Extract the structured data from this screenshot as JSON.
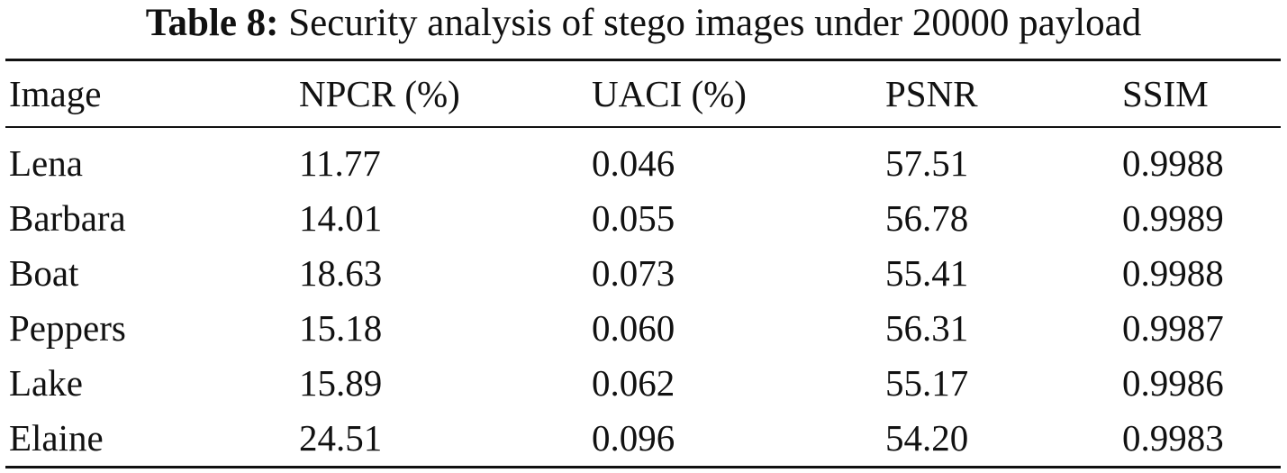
{
  "caption": {
    "label": "Table 8:",
    "text": "Security analysis of stego images under 20000 payload"
  },
  "table": {
    "headers": [
      "Image",
      "NPCR (%)",
      "UACI (%)",
      "PSNR",
      "SSIM"
    ],
    "rows": [
      [
        "Lena",
        "11.77",
        "0.046",
        "57.51",
        "0.9988"
      ],
      [
        "Barbara",
        "14.01",
        "0.055",
        "56.78",
        "0.9989"
      ],
      [
        "Boat",
        "18.63",
        "0.073",
        "55.41",
        "0.9988"
      ],
      [
        "Peppers",
        "15.18",
        "0.060",
        "56.31",
        "0.9987"
      ],
      [
        "Lake",
        "15.89",
        "0.062",
        "55.17",
        "0.9986"
      ],
      [
        "Elaine",
        "24.51",
        "0.096",
        "54.20",
        "0.9983"
      ]
    ]
  }
}
